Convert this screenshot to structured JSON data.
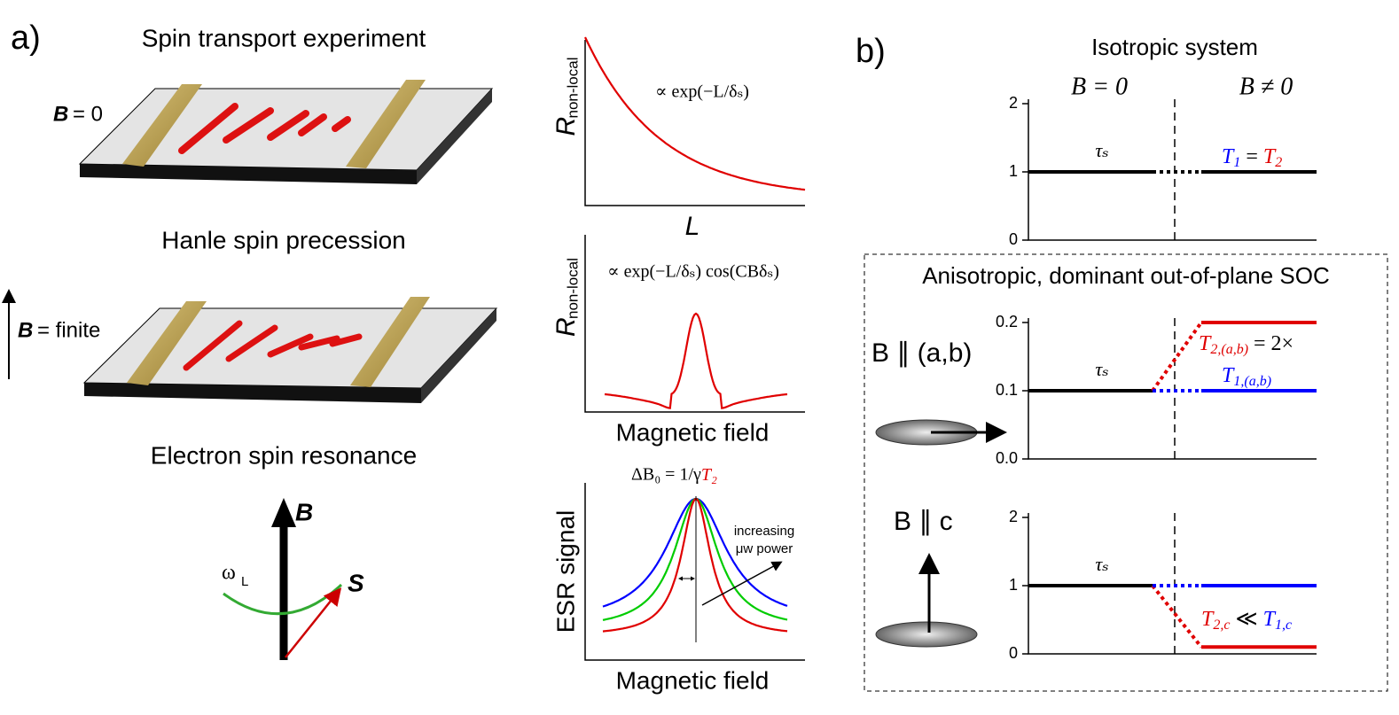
{
  "panel_a": {
    "label": "a)",
    "sections": [
      {
        "title": "Spin transport experiment",
        "field_symbol": "B",
        "field_text": "= 0"
      },
      {
        "title": "Hanle spin precession",
        "field_symbol": "B",
        "field_text": "= finite"
      },
      {
        "title": "Electron spin resonance"
      }
    ],
    "esr_vectors": {
      "field": "B",
      "spin": "S",
      "omega": "ω",
      "omega_sub": "L"
    },
    "plots": [
      {
        "ylabel": "R",
        "ylabel_sub": "non-local",
        "xlabel": "L",
        "formula": "∝ exp(−L/δₛ)"
      },
      {
        "ylabel": "R",
        "ylabel_sub": "non-local",
        "xlabel": "Magnetic field",
        "formula": "∝ exp(−L/δₛ) cos(CBδₛ)"
      },
      {
        "ylabel": "ESR signal",
        "xlabel": "Magnetic field",
        "formula": "ΔB₀ = 1/γ",
        "formula_red": "T₂",
        "annotation": [
          "increasing",
          "μw power"
        ]
      }
    ]
  },
  "panel_b": {
    "label": "b)",
    "title": "Isotropic system",
    "left_header": "B = 0",
    "right_header": "B ≠ 0",
    "box_title": "Anisotropic, dominant out-of-plane SOC",
    "plots": [
      {
        "ylim": [
          0,
          2
        ],
        "yticks": [
          0,
          1,
          2
        ],
        "left_value": 1,
        "left_label": "τₛ",
        "right": [
          {
            "color": "#000000",
            "value": 1
          }
        ],
        "labels": [
          [
            {
              "text": "T",
              "sub": "1",
              "color": "#0000ff"
            },
            {
              "text": " = ",
              "color": "#000000"
            },
            {
              "text": "T",
              "sub": "2",
              "color": "#e00000"
            }
          ]
        ]
      },
      {
        "condition": "B ∥ (a,b)",
        "ylim": [
          0,
          0.2
        ],
        "yticks": [
          {
            "value": 0,
            "label": "0.0"
          },
          {
            "value": 0.1,
            "label": "0.1"
          },
          {
            "value": 0.2,
            "label": "0.2"
          }
        ],
        "left_value": 0.1,
        "left_label": "τₛ",
        "right": [
          {
            "color": "#e00000",
            "value": 0.2
          },
          {
            "color": "#0000ff",
            "value": 0.1
          }
        ],
        "labels": [
          [
            {
              "text": "T",
              "sub": "2,(a,b)",
              "color": "#e00000"
            },
            {
              "text": " = 2×",
              "color": "#000000"
            }
          ],
          [
            {
              "text": "T",
              "sub": "1,(a,b)",
              "color": "#0000ff"
            }
          ]
        ]
      },
      {
        "condition": "B ∥ c",
        "ylim": [
          0,
          2
        ],
        "yticks": [
          0,
          1,
          2
        ],
        "left_value": 1,
        "left_label": "τₛ",
        "right": [
          {
            "color": "#e00000",
            "value": 0.1
          },
          {
            "color": "#0000ff",
            "value": 1
          }
        ],
        "labels": [
          [
            {
              "text": "T",
              "sub": "2,c",
              "color": "#e00000"
            },
            {
              "text": " ≪ ",
              "color": "#000000"
            },
            {
              "text": "T",
              "sub": "1,c",
              "color": "#0000ff"
            }
          ]
        ]
      }
    ]
  }
}
